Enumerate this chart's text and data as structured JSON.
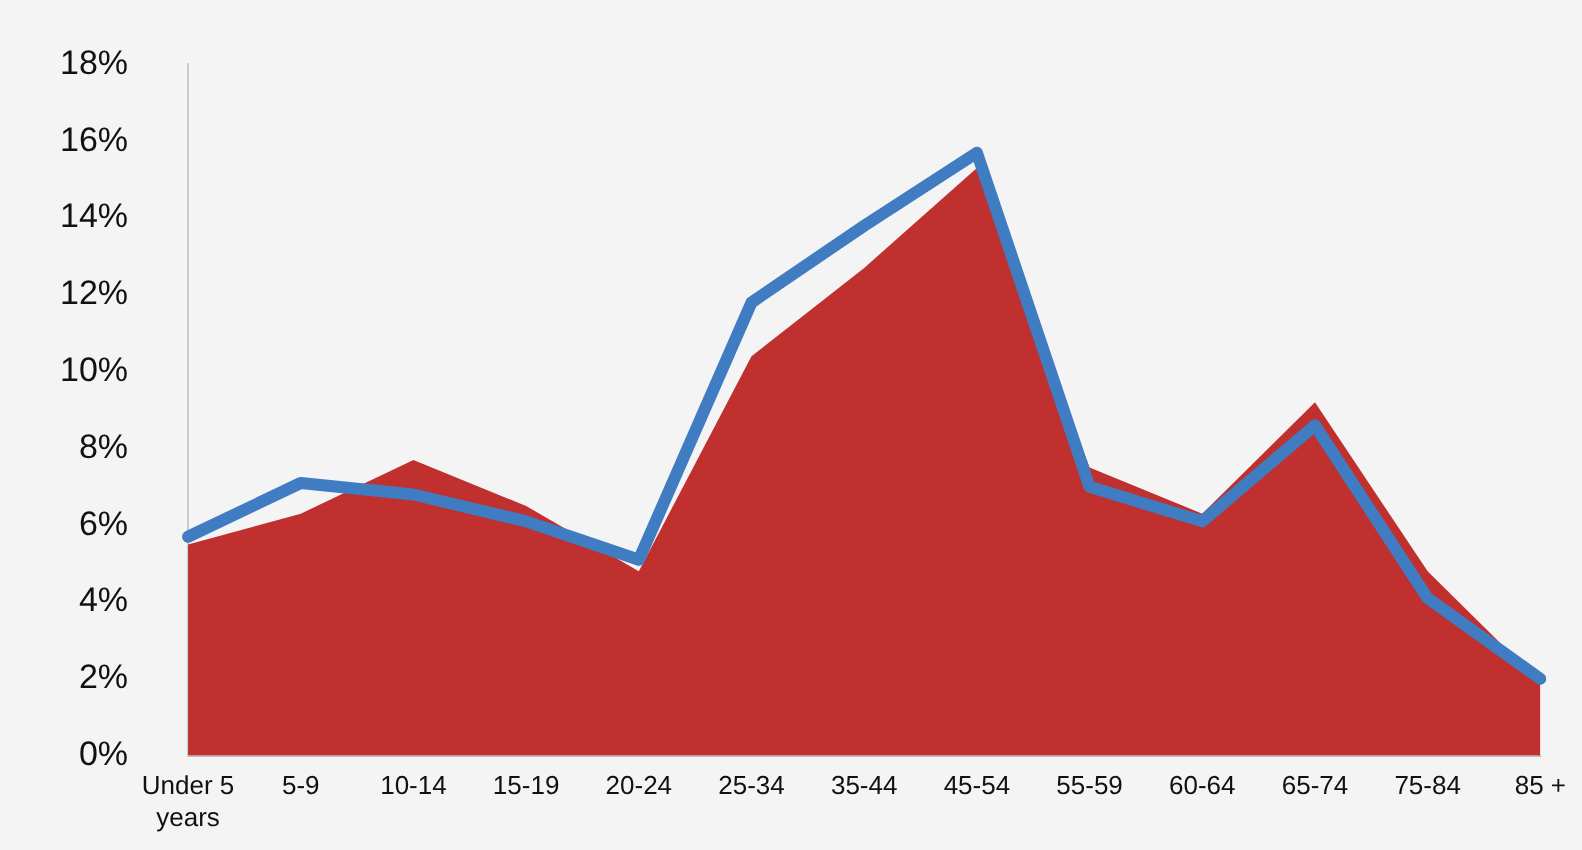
{
  "chart_data": {
    "type": "area",
    "categories": [
      "Under 5 years",
      "5-9",
      "10-14",
      "15-19",
      "20-24",
      "25-34",
      "35-44",
      "45-54",
      "55-59",
      "60-64",
      "65-74",
      "75-84",
      "85 +"
    ],
    "series": [
      {
        "color": "#c0302f",
        "values": [
          5.5,
          6.3,
          7.7,
          6.5,
          4.8,
          10.4,
          12.7,
          15.3,
          7.5,
          6.3,
          9.2,
          4.8,
          1.9
        ]
      },
      {
        "type": "line",
        "color": "#3f7cc2",
        "values": [
          5.7,
          7.1,
          6.8,
          6.1,
          5.1,
          11.8,
          13.8,
          15.7,
          7.0,
          6.1,
          8.6,
          4.1,
          2.0
        ]
      }
    ],
    "ylim": [
      0,
      18
    ],
    "yticks": [
      {
        "value": 0,
        "label": "0%"
      },
      {
        "value": 2,
        "label": "2%"
      },
      {
        "value": 4,
        "label": "4%"
      },
      {
        "value": 6,
        "label": "6%"
      },
      {
        "value": 8,
        "label": "8%"
      },
      {
        "value": 10,
        "label": "10%"
      },
      {
        "value": 12,
        "label": "12%"
      },
      {
        "value": 14,
        "label": "14%"
      },
      {
        "value": 16,
        "label": "16%"
      },
      {
        "value": 18,
        "label": "18%"
      }
    ],
    "grid": false,
    "legend": false
  }
}
